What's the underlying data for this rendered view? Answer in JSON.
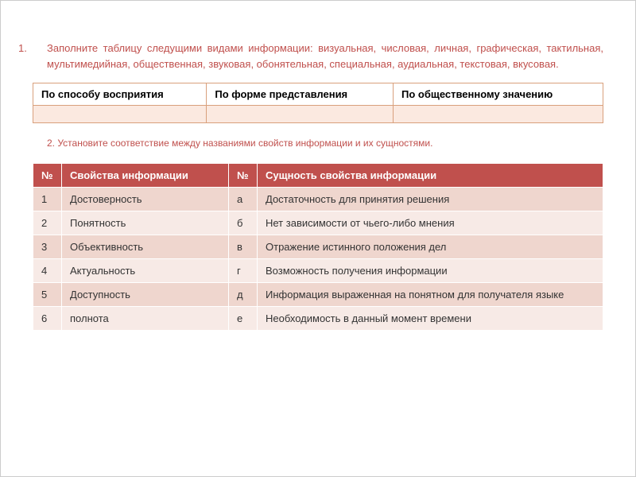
{
  "task1": {
    "number": "1.",
    "text": "Заполните таблицу следущими видами информации: визуальная, числовая, личная, графическая, тактильная, мультимедийная, общественная, звуковая, обонятельная, специальная, аудиальная, текстовая, вкусовая."
  },
  "table1": {
    "headers": [
      "По способу восприятия",
      "По форме представления",
      "По общественному значению"
    ],
    "rows": [
      [
        "",
        "",
        ""
      ]
    ]
  },
  "task2": {
    "text": "2. Установите соответствие между названиями свойств информации и их сущностями."
  },
  "table2": {
    "headers": {
      "num": "№",
      "property": "Свойства информации",
      "num2": "№",
      "essence": "Сущность свойства информации"
    },
    "rows": [
      {
        "n": "1",
        "prop": "Достоверность",
        "l": "а",
        "ess": "Достаточность для принятия решения"
      },
      {
        "n": "2",
        "prop": "Понятность",
        "l": "б",
        "ess": "Нет зависимости от чьего-либо мнения"
      },
      {
        "n": "3",
        "prop": "Объективность",
        "l": "в",
        "ess": "Отражение истинного положения дел"
      },
      {
        "n": "4",
        "prop": "Актуальность",
        "l": "г",
        "ess": "Возможность получения информации"
      },
      {
        "n": "5",
        "prop": "Доступность",
        "l": "д",
        "ess": "Информация выраженная на понятном для получателя языке"
      },
      {
        "n": "6",
        "prop": "полнота",
        "l": "е",
        "ess": "Необходимость в данный момент времени"
      }
    ]
  },
  "colors": {
    "accent": "#c0504d",
    "table1_border": "#d9a07c",
    "table1_row_bg": "#fbe9e0",
    "table2_header_bg": "#c0504d",
    "table2_row_odd": "#efd6ce",
    "table2_row_even": "#f7eae6",
    "page_bg": "#ffffff"
  }
}
